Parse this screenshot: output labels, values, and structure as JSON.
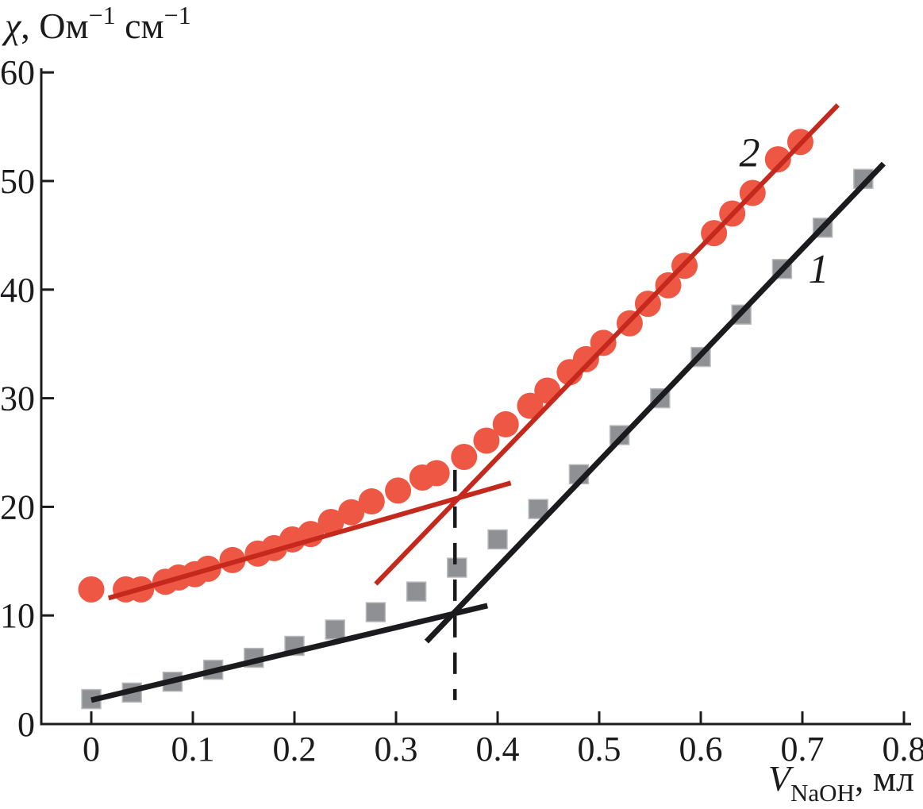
{
  "chart_data": {
    "type": "scatter",
    "title": "",
    "ylabel": "χ, Ом⁻¹ см⁻¹",
    "xlabel": "V_NaOH, мл",
    "ylabel_parts": [
      {
        "text": "χ",
        "italic": true
      },
      {
        "text": ", Ом"
      },
      {
        "text": "−1",
        "script": "sup"
      },
      {
        "text": " см"
      },
      {
        "text": "−1",
        "script": "sup"
      }
    ],
    "xlabel_parts": [
      {
        "text": "V",
        "italic": true
      },
      {
        "text": "NaOH",
        "script": "sub"
      },
      {
        "text": ", мл"
      }
    ],
    "xlim": [
      -0.05,
      0.81
    ],
    "ylim": [
      0,
      60.5
    ],
    "grid": false,
    "legend_position": "none",
    "x_ticks": {
      "values": [
        0,
        0.1,
        0.2,
        0.3,
        0.4,
        0.5,
        0.6,
        0.7,
        0.8
      ],
      "labels": [
        "0",
        "0.1",
        "0.2",
        "0.3",
        "0.4",
        "0.5",
        "0.6",
        "0.7",
        "0.8"
      ]
    },
    "y_ticks": {
      "values": [
        0,
        10,
        20,
        30,
        40,
        50,
        60
      ],
      "labels": [
        "0",
        "10",
        "20",
        "30",
        "40",
        "50",
        "60"
      ]
    },
    "series": [
      {
        "name": "series-1-squares",
        "label": "1",
        "marker": "square",
        "marker_size": 26,
        "color": "#8e9094",
        "edge_color": "#b7b9bb",
        "x": [
          0.0,
          0.04,
          0.08,
          0.12,
          0.16,
          0.2,
          0.24,
          0.28,
          0.32,
          0.36,
          0.4,
          0.44,
          0.48,
          0.52,
          0.56,
          0.6,
          0.64,
          0.68,
          0.72,
          0.76
        ],
        "y": [
          2.3,
          2.9,
          3.9,
          5.0,
          6.1,
          7.2,
          8.7,
          10.3,
          12.2,
          14.4,
          17.0,
          19.8,
          23.0,
          26.6,
          30.0,
          33.8,
          37.7,
          41.9,
          45.7,
          50.2
        ]
      },
      {
        "name": "series-2-circles",
        "label": "2",
        "marker": "circle",
        "marker_size": 33,
        "color": "#ee5743",
        "edge_color": "#ee5743",
        "x": [
          0.0,
          0.034,
          0.049,
          0.073,
          0.086,
          0.102,
          0.115,
          0.139,
          0.164,
          0.18,
          0.198,
          0.216,
          0.236,
          0.256,
          0.276,
          0.302,
          0.326,
          0.34,
          0.367,
          0.389,
          0.408,
          0.432,
          0.449,
          0.471,
          0.487,
          0.504,
          0.53,
          0.548,
          0.568,
          0.584,
          0.613,
          0.631,
          0.651,
          0.676,
          0.698
        ],
        "y": [
          12.4,
          12.4,
          12.4,
          13.1,
          13.5,
          13.8,
          14.3,
          15.1,
          15.7,
          16.2,
          17.0,
          17.5,
          18.6,
          19.5,
          20.5,
          21.5,
          22.7,
          23.1,
          24.6,
          26.1,
          27.6,
          29.3,
          30.7,
          32.4,
          33.6,
          35.1,
          36.9,
          38.7,
          40.4,
          42.2,
          45.2,
          47.0,
          48.9,
          52.0,
          53.6
        ]
      }
    ],
    "fit_lines": [
      {
        "name": "series-1-fit-shallow",
        "color": "#1b1b1d",
        "width": 7,
        "x1": 0.0,
        "y1": 2.2,
        "x2": 0.39,
        "y2": 10.9
      },
      {
        "name": "series-1-fit-steep",
        "color": "#1b1b1d",
        "width": 7,
        "x1": 0.33,
        "y1": 7.6,
        "x2": 0.78,
        "y2": 51.6
      },
      {
        "name": "series-2-fit-shallow",
        "color": "#c5281c",
        "width": 6,
        "x1": 0.017,
        "y1": 11.6,
        "x2": 0.413,
        "y2": 22.2
      },
      {
        "name": "series-2-fit-steep",
        "color": "#c5281c",
        "width": 6,
        "x1": 0.28,
        "y1": 12.9,
        "x2": 0.735,
        "y2": 57.0
      }
    ],
    "equivalence_line": {
      "style": "dashed",
      "color": "#1b1b1d",
      "width": 4.5,
      "dash": "27 19",
      "x": 0.358,
      "y_top": 23.4,
      "y_bottom": 2.2
    },
    "curve_labels": [
      {
        "text": "2",
        "x": 0.648,
        "y": 52.6
      },
      {
        "text": "1",
        "x": 0.716,
        "y": 41.9
      }
    ],
    "axis_color": "#1b1b1d"
  }
}
